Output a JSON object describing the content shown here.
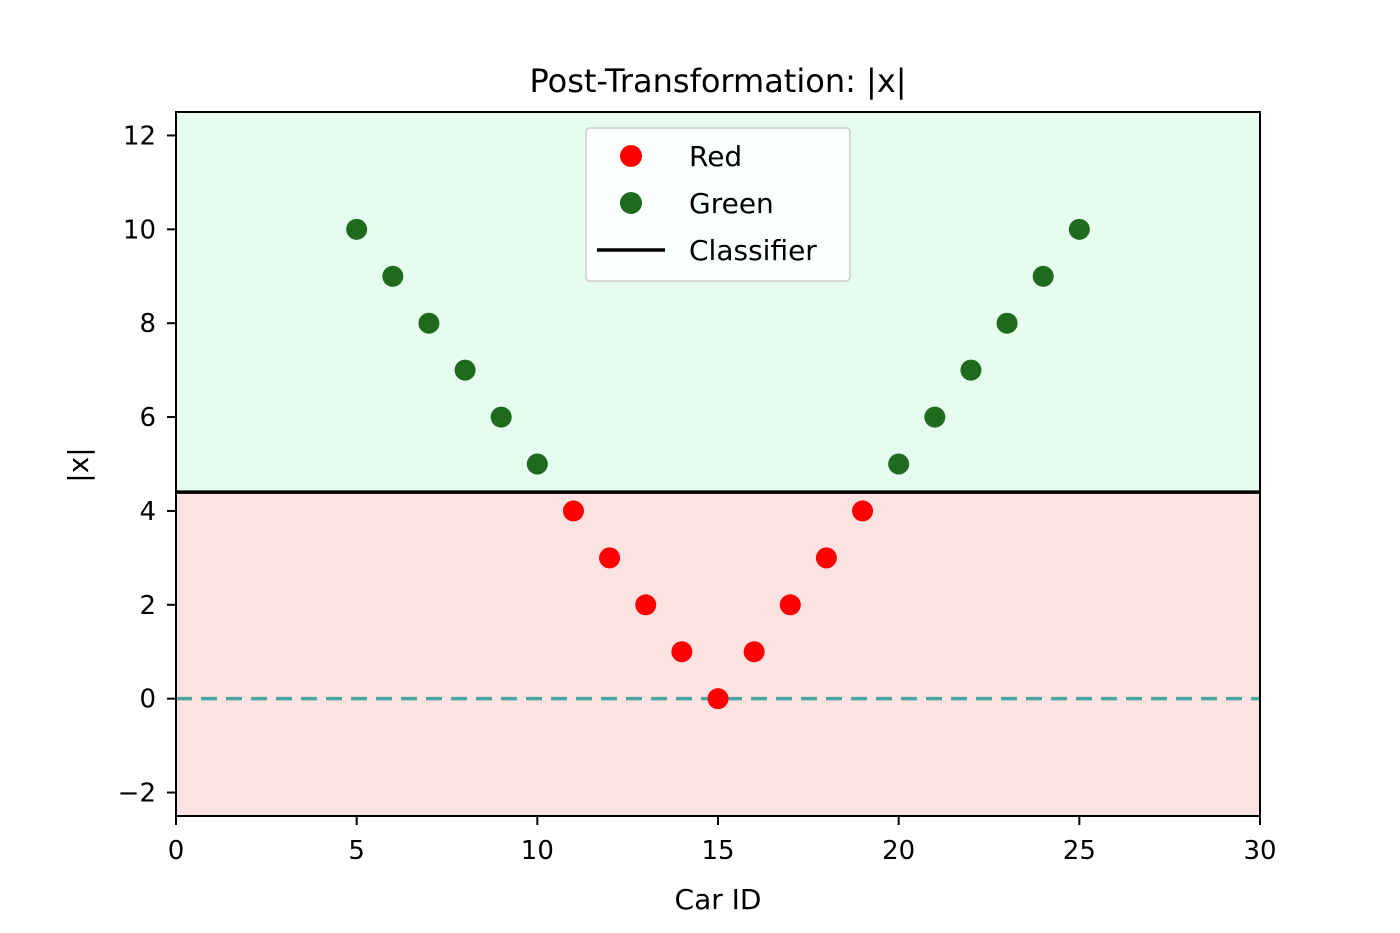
{
  "chart_data": {
    "type": "scatter",
    "title": "Post-Transformation: |x|",
    "xlabel": "Car ID",
    "ylabel": "|x|",
    "xlim": [
      0,
      30
    ],
    "ylim": [
      -2.5,
      12.5
    ],
    "xticks": [
      0,
      5,
      10,
      15,
      20,
      25,
      30
    ],
    "yticks": [
      -2,
      0,
      2,
      4,
      6,
      8,
      10,
      12
    ],
    "xtick_labels": [
      "0",
      "5",
      "10",
      "15",
      "20",
      "25",
      "30"
    ],
    "ytick_labels": [
      "−2",
      "0",
      "2",
      "4",
      "6",
      "8",
      "10",
      "12"
    ],
    "grid": false,
    "legend_position": "top-center",
    "threshold": 4.4,
    "zero_line": 0,
    "regions": {
      "above_color": "#e5fcef",
      "below_color": "#fde2e2"
    },
    "series": [
      {
        "name": "Red",
        "color": "#ff0000",
        "marker": "circle",
        "x": [
          11,
          12,
          13,
          14,
          15,
          16,
          17,
          18,
          19
        ],
        "y": [
          4,
          3,
          2,
          1,
          0,
          1,
          2,
          3,
          4
        ]
      },
      {
        "name": "Green",
        "color": "#1e6b1e",
        "marker": "circle",
        "x": [
          5,
          6,
          7,
          8,
          9,
          10,
          20,
          21,
          22,
          23,
          24,
          25
        ],
        "y": [
          10,
          9,
          8,
          7,
          6,
          5,
          5,
          6,
          7,
          8,
          9,
          10
        ]
      },
      {
        "name": "Classifier",
        "color": "#000000",
        "marker": "line",
        "y": 4.4
      }
    ],
    "zero_line_color": "#4aa6a0"
  }
}
